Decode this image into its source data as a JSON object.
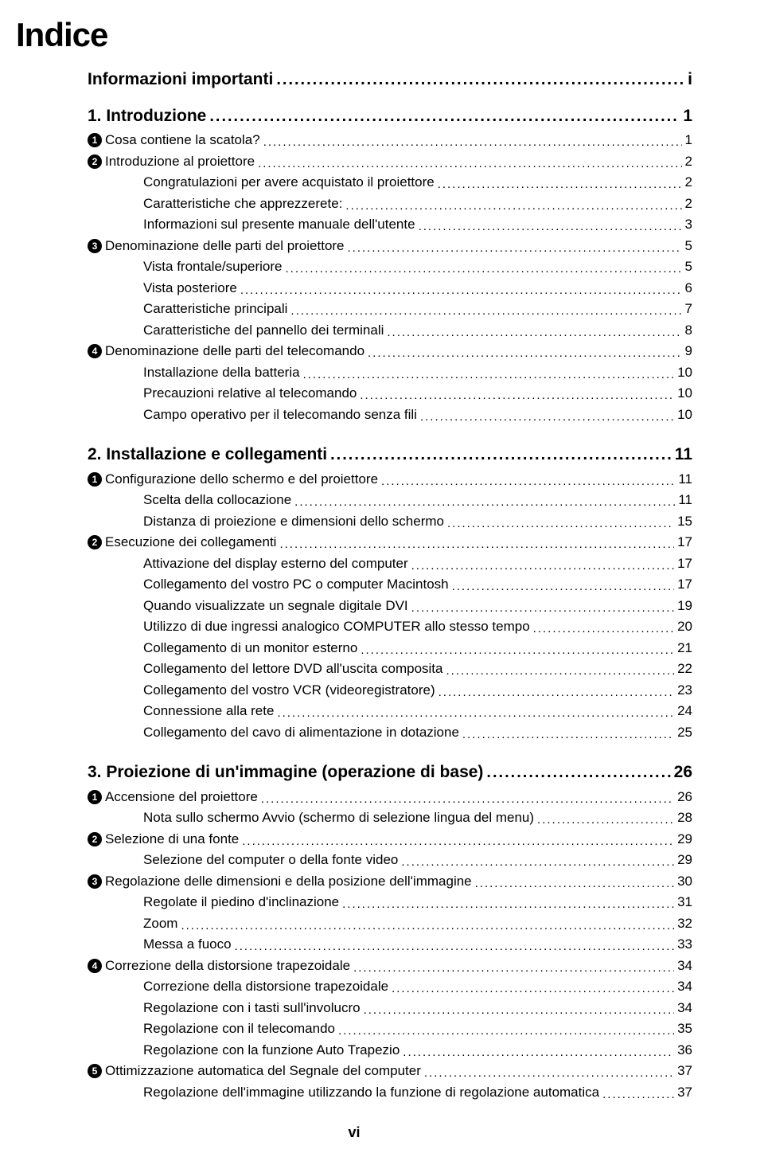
{
  "title": "Indice",
  "footer": "vi",
  "top_heading": {
    "label": "Informazioni importanti",
    "page": "i"
  },
  "chapters": [
    {
      "label": "1. Introduzione",
      "page": "1",
      "sections": [
        {
          "num": "1",
          "label": "Cosa contiene la scatola?",
          "page": "1",
          "subs": []
        },
        {
          "num": "2",
          "label": "Introduzione al proiettore",
          "page": "2",
          "subs": [
            {
              "label": "Congratulazioni per avere acquistato il proiettore",
              "page": "2"
            },
            {
              "label": "Caratteristiche che apprezzerete:",
              "page": "2"
            },
            {
              "label": "Informazioni sul presente manuale dell'utente",
              "page": "3"
            }
          ]
        },
        {
          "num": "3",
          "label": "Denominazione delle parti del proiettore",
          "page": "5",
          "subs": [
            {
              "label": "Vista frontale/superiore",
              "page": "5"
            },
            {
              "label": "Vista posteriore",
              "page": "6"
            },
            {
              "label": "Caratteristiche principali",
              "page": "7"
            },
            {
              "label": "Caratteristiche del pannello dei terminali",
              "page": "8"
            }
          ]
        },
        {
          "num": "4",
          "label": "Denominazione delle parti del telecomando",
          "page": "9",
          "subs": [
            {
              "label": "Installazione della batteria",
              "page": "10"
            },
            {
              "label": "Precauzioni relative al telecomando",
              "page": "10"
            },
            {
              "label": "Campo operativo per il telecomando senza fili",
              "page": "10"
            }
          ]
        }
      ]
    },
    {
      "label": "2. Installazione e collegamenti",
      "page": "11",
      "sections": [
        {
          "num": "1",
          "label": "Configurazione dello schermo e del proiettore",
          "page": "11",
          "subs": [
            {
              "label": "Scelta della collocazione",
              "page": "11"
            },
            {
              "label": "Distanza di proiezione e dimensioni dello schermo",
              "page": "15"
            }
          ]
        },
        {
          "num": "2",
          "label": "Esecuzione dei collegamenti",
          "page": "17",
          "subs": [
            {
              "label": "Attivazione del display esterno del computer",
              "page": "17"
            },
            {
              "label": "Collegamento del vostro PC o computer Macintosh",
              "page": "17"
            },
            {
              "label": "Quando visualizzate un segnale digitale DVI",
              "page": "19"
            },
            {
              "label": "Utilizzo di due ingressi analogico COMPUTER allo stesso tempo",
              "page": "20"
            },
            {
              "label": "Collegamento di un monitor esterno",
              "page": "21"
            },
            {
              "label": "Collegamento del lettore DVD all'uscita composita",
              "page": "22"
            },
            {
              "label": "Collegamento del vostro VCR (videoregistratore)",
              "page": "23"
            },
            {
              "label": "Connessione alla rete",
              "page": "24"
            },
            {
              "label": "Collegamento del cavo di alimentazione in dotazione",
              "page": "25"
            }
          ]
        }
      ]
    },
    {
      "label": "3. Proiezione di un'immagine (operazione di base)",
      "page": "26",
      "sections": [
        {
          "num": "1",
          "label": "Accensione del proiettore",
          "page": "26",
          "subs": [
            {
              "label": "Nota sullo schermo Avvio (schermo di selezione lingua del menu)",
              "page": "28"
            }
          ]
        },
        {
          "num": "2",
          "label": "Selezione di una fonte",
          "page": "29",
          "subs": [
            {
              "label": "Selezione del computer o della fonte video",
              "page": "29"
            }
          ]
        },
        {
          "num": "3",
          "label": "Regolazione delle dimensioni e della posizione dell'immagine",
          "page": "30",
          "subs": [
            {
              "label": "Regolate il piedino d'inclinazione",
              "page": "31"
            },
            {
              "label": "Zoom",
              "page": "32"
            },
            {
              "label": "Messa a fuoco",
              "page": "33"
            }
          ]
        },
        {
          "num": "4",
          "label": "Correzione della distorsione trapezoidale",
          "page": "34",
          "subs": [
            {
              "label": "Correzione della distorsione trapezoidale",
              "page": "34"
            },
            {
              "label": "Regolazione con i tasti sull'involucro",
              "page": "34"
            },
            {
              "label": "Regolazione con il telecomando",
              "page": "35"
            },
            {
              "label": "Regolazione con la funzione Auto Trapezio",
              "page": "36"
            }
          ]
        },
        {
          "num": "5",
          "label": "Ottimizzazione automatica del Segnale del computer",
          "page": "37",
          "subs": [
            {
              "label": "Regolazione dell'immagine utilizzando la funzione di regolazione automatica",
              "page": "37"
            }
          ]
        }
      ]
    }
  ]
}
